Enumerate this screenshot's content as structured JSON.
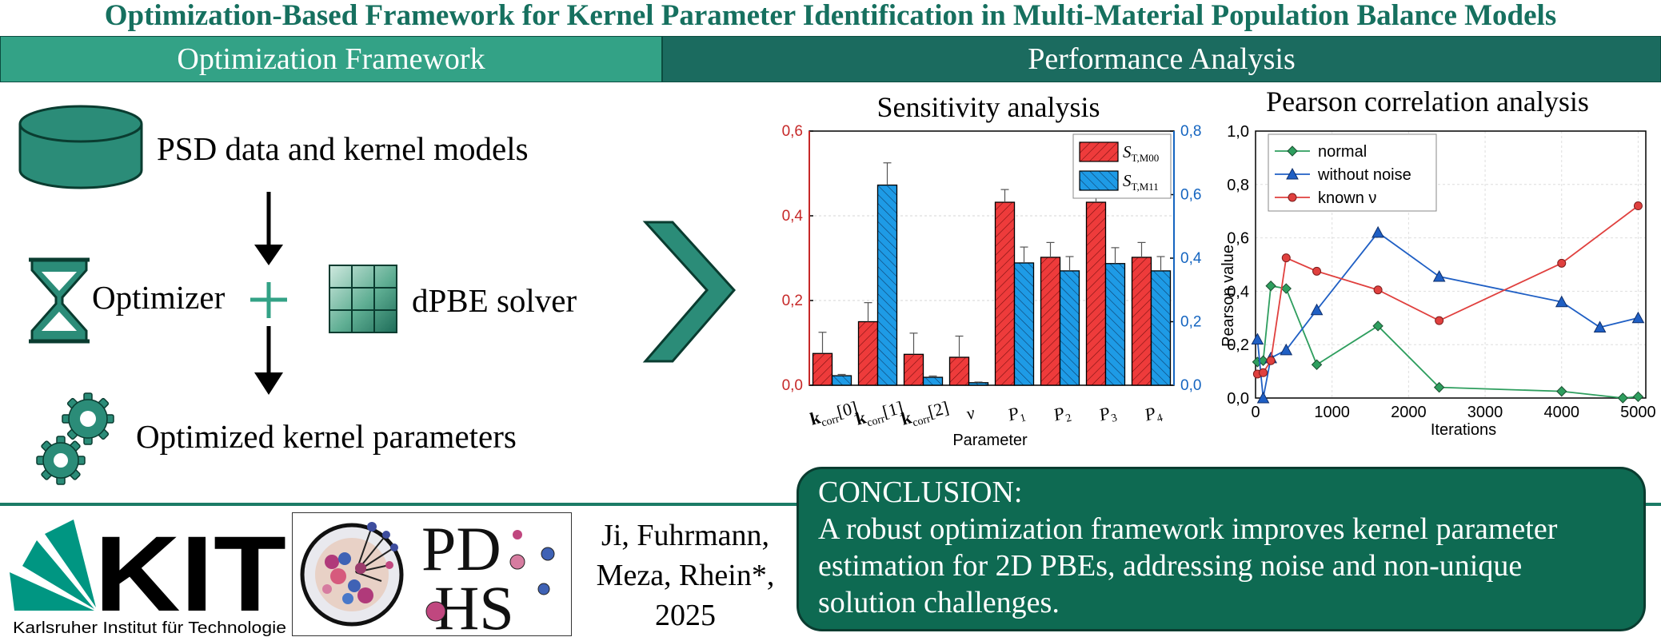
{
  "title": "Optimization-Based Framework for Kernel Parameter Identification in Multi-Material Population Balance Models",
  "bands": {
    "left": "Optimization Framework",
    "right": "Performance Analysis"
  },
  "flow": {
    "data_label": "PSD data and kernel models",
    "optimizer_label": "Optimizer",
    "solver_label": "dPBE solver",
    "result_label": "Optimized kernel parameters"
  },
  "colors": {
    "accent": "#33a286",
    "dark_accent": "#1b6b5f",
    "red": "#ee3b3b",
    "blue": "#1e9be6"
  },
  "chart_data": [
    {
      "type": "bar",
      "title": "Sensitivity analysis",
      "xlabel": "Parameter",
      "categories": [
        "k_corr[0]",
        "k_corr[1]",
        "k_corr[2]",
        "v",
        "P1",
        "P2",
        "P3",
        "P4"
      ],
      "category_display": [
        {
          "main": "k",
          "sub": "corr",
          "tail": "[0]"
        },
        {
          "main": "k",
          "sub": "corr",
          "tail": "[1]"
        },
        {
          "main": "k",
          "sub": "corr",
          "tail": "[2]"
        },
        {
          "main": "ν",
          "sub": "",
          "tail": ""
        },
        {
          "main": "P",
          "sub": "1",
          "tail": ""
        },
        {
          "main": "P",
          "sub": "2",
          "tail": ""
        },
        {
          "main": "P",
          "sub": "3",
          "tail": ""
        },
        {
          "main": "P",
          "sub": "4",
          "tail": ""
        }
      ],
      "left_axis": {
        "range": [
          0,
          0.6
        ],
        "ticks": [
          "0,0",
          "0,2",
          "0,4",
          "0,6"
        ],
        "color": "#c62828"
      },
      "right_axis": {
        "range": [
          0,
          0.8
        ],
        "ticks": [
          "0,0",
          "0,2",
          "0,4",
          "0,6",
          "0,8"
        ],
        "color": "#1565c0"
      },
      "series": [
        {
          "name": "S_T,M00",
          "legend_main": "S",
          "legend_sub": "T,M00",
          "axis": "left",
          "color": "#ee3b3b",
          "values": [
            0.075,
            0.15,
            0.073,
            0.066,
            0.432,
            0.302,
            0.432,
            0.302
          ],
          "errors": [
            0.05,
            0.045,
            0.05,
            0.05,
            0.03,
            0.035,
            0.03,
            0.035
          ]
        },
        {
          "name": "S_T,M11",
          "legend_main": "S",
          "legend_sub": "T,M11",
          "axis": "right",
          "color": "#1e9be6",
          "values": [
            0.03,
            0.63,
            0.025,
            0.008,
            0.385,
            0.36,
            0.383,
            0.36
          ],
          "errors": [
            0.004,
            0.07,
            0.004,
            0.002,
            0.05,
            0.045,
            0.05,
            0.045
          ]
        }
      ]
    },
    {
      "type": "line",
      "title": "Pearson correlation analysis",
      "xlabel": "Iterations",
      "ylabel": "Pearson value",
      "xlim": [
        0,
        5100
      ],
      "ylim": [
        0,
        1.0
      ],
      "xticks": [
        "0",
        "1000",
        "2000",
        "3000",
        "4000",
        "5000"
      ],
      "yticks": [
        "0,0",
        "0,2",
        "0,4",
        "0,6",
        "0,8",
        "1,0"
      ],
      "series": [
        {
          "name": "normal",
          "color": "#2e9e5e",
          "marker": "diamond",
          "x": [
            25,
            100,
            200,
            400,
            800,
            1600,
            2400,
            4000,
            4800,
            5000
          ],
          "y": [
            0.135,
            0.14,
            0.42,
            0.41,
            0.125,
            0.27,
            0.04,
            0.025,
            0.0,
            0.005
          ]
        },
        {
          "name": "without noise",
          "color": "#1f5fc4",
          "marker": "triangle",
          "x": [
            25,
            100,
            200,
            400,
            800,
            1600,
            2400,
            4000,
            4500,
            5000
          ],
          "y": [
            0.22,
            0.0,
            0.15,
            0.18,
            0.33,
            0.62,
            0.455,
            0.36,
            0.265,
            0.3
          ]
        },
        {
          "name": "known ν",
          "color": "#e0403e",
          "marker": "circle",
          "x": [
            25,
            100,
            200,
            400,
            800,
            1600,
            2400,
            4000,
            5000
          ],
          "y": [
            0.09,
            0.095,
            0.14,
            0.525,
            0.475,
            0.405,
            0.29,
            0.505,
            0.72
          ]
        }
      ]
    }
  ],
  "footer": {
    "kit_text": "KIT",
    "kit_caption": "Karlsruher Institut für Technologie",
    "pdhs_top": "PD",
    "pdhs_bottom": "HS",
    "authors_line1": "Ji, Fuhrmann,",
    "authors_line2": "Meza, Rhein*,",
    "year": "2025"
  },
  "conclusion": {
    "heading": "CONCLUSION:",
    "text": "A robust optimization framework improves kernel parameter estimation for 2D PBEs, addressing noise and non-unique solution challenges."
  }
}
